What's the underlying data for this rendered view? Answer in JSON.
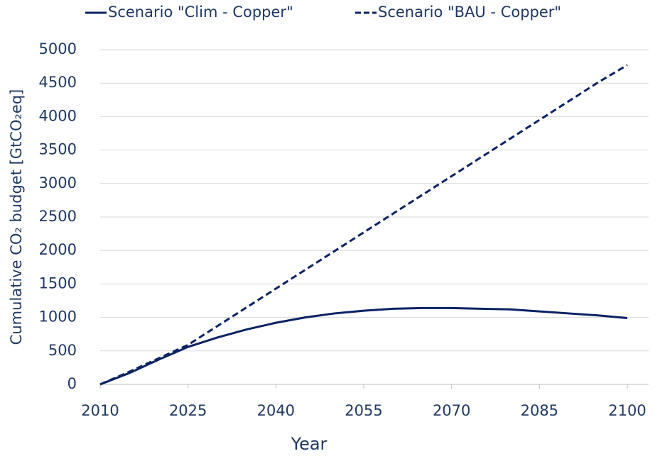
{
  "chart_data": {
    "type": "line",
    "x_label": "Year",
    "y_label": "Cumulative CO₂ budget [GtCO₂eq]",
    "x": [
      2010,
      2015,
      2020,
      2025,
      2030,
      2035,
      2040,
      2045,
      2050,
      2055,
      2060,
      2065,
      2070,
      2075,
      2080,
      2085,
      2090,
      2095,
      2100
    ],
    "series": [
      {
        "name": "Scenario \"Clim - Copper\"",
        "color": "#0b2265",
        "dash": "solid",
        "values": [
          0,
          170,
          370,
          560,
          700,
          820,
          920,
          1000,
          1060,
          1100,
          1130,
          1140,
          1140,
          1130,
          1120,
          1090,
          1060,
          1030,
          990
        ]
      },
      {
        "name": "Scenario \"BAU - Copper\"",
        "color": "#0b2265",
        "dash": "dashed",
        "values": [
          0,
          190,
          390,
          590,
          870,
          1150,
          1430,
          1710,
          1990,
          2270,
          2550,
          2830,
          3110,
          3390,
          3670,
          3950,
          4230,
          4510,
          4770
        ]
      }
    ],
    "xlim": [
      2010,
      2100
    ],
    "xticks": [
      2010,
      2025,
      2040,
      2055,
      2070,
      2085,
      2100
    ],
    "ylim": [
      0,
      5000
    ],
    "yticks": [
      0,
      500,
      1000,
      1500,
      2000,
      2500,
      3000,
      3500,
      4000,
      4500,
      5000
    ],
    "grid": true,
    "legend": "top"
  }
}
